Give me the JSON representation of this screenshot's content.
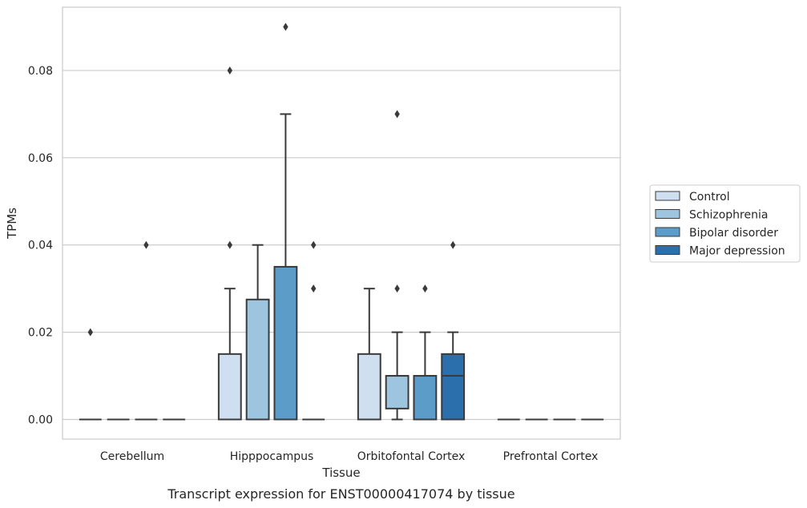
{
  "chart_data": {
    "type": "box",
    "title": "Transcript expression for ENST00000417074 by tissue",
    "xlabel": "Tissue",
    "ylabel": "TPMs",
    "categories": [
      "Cerebellum",
      "Hipppocampus",
      "Orbitofontal Cortex",
      "Prefrontal Cortex"
    ],
    "ylim": [
      -0.0045,
      0.0945
    ],
    "yticks": [
      0.0,
      0.02,
      0.04,
      0.06,
      0.08
    ],
    "ytick_labels": [
      "0.00",
      "0.02",
      "0.04",
      "0.06",
      "0.08"
    ],
    "grid": "horizontal",
    "legend_position": "right",
    "series": [
      {
        "name": "Control",
        "color": "#d0dff0",
        "boxes": [
          {
            "category": "Cerebellum",
            "whislo": 0.0,
            "q1": 0.0,
            "med": 0.0,
            "q3": 0.0,
            "whishi": 0.0,
            "fliers": [
              0.02
            ]
          },
          {
            "category": "Hipppocampus",
            "whislo": 0.0,
            "q1": 0.0,
            "med": 0.0,
            "q3": 0.015,
            "whishi": 0.03,
            "fliers": [
              0.04,
              0.08
            ]
          },
          {
            "category": "Orbitofontal Cortex",
            "whislo": 0.0,
            "q1": 0.0,
            "med": 0.0,
            "q3": 0.015,
            "whishi": 0.03,
            "fliers": []
          },
          {
            "category": "Prefrontal Cortex",
            "whislo": 0.0,
            "q1": 0.0,
            "med": 0.0,
            "q3": 0.0,
            "whishi": 0.0,
            "fliers": []
          }
        ]
      },
      {
        "name": "Schizophrenia",
        "color": "#9dc5e0",
        "boxes": [
          {
            "category": "Cerebellum",
            "whislo": 0.0,
            "q1": 0.0,
            "med": 0.0,
            "q3": 0.0,
            "whishi": 0.0,
            "fliers": []
          },
          {
            "category": "Hipppocampus",
            "whislo": 0.0,
            "q1": 0.0,
            "med": 0.0,
            "q3": 0.0275,
            "whishi": 0.04,
            "fliers": []
          },
          {
            "category": "Orbitofontal Cortex",
            "whislo": 0.0,
            "q1": 0.0025,
            "med": 0.01,
            "q3": 0.01,
            "whishi": 0.02,
            "fliers": [
              0.03,
              0.07
            ]
          },
          {
            "category": "Prefrontal Cortex",
            "whislo": 0.0,
            "q1": 0.0,
            "med": 0.0,
            "q3": 0.0,
            "whishi": 0.0,
            "fliers": []
          }
        ]
      },
      {
        "name": "Bipolar disorder",
        "color": "#5b9cc9",
        "boxes": [
          {
            "category": "Cerebellum",
            "whislo": 0.0,
            "q1": 0.0,
            "med": 0.0,
            "q3": 0.0,
            "whishi": 0.0,
            "fliers": [
              0.04
            ]
          },
          {
            "category": "Hipppocampus",
            "whislo": 0.0,
            "q1": 0.0,
            "med": 0.0,
            "q3": 0.035,
            "whishi": 0.07,
            "fliers": [
              0.09
            ]
          },
          {
            "category": "Orbitofontal Cortex",
            "whislo": 0.0,
            "q1": 0.0,
            "med": 0.01,
            "q3": 0.01,
            "whishi": 0.02,
            "fliers": [
              0.03
            ]
          },
          {
            "category": "Prefrontal Cortex",
            "whislo": 0.0,
            "q1": 0.0,
            "med": 0.0,
            "q3": 0.0,
            "whishi": 0.0,
            "fliers": []
          }
        ]
      },
      {
        "name": "Major depression",
        "color": "#2c6fad",
        "boxes": [
          {
            "category": "Cerebellum",
            "whislo": 0.0,
            "q1": 0.0,
            "med": 0.0,
            "q3": 0.0,
            "whishi": 0.0,
            "fliers": []
          },
          {
            "category": "Hipppocampus",
            "whislo": 0.0,
            "q1": 0.0,
            "med": 0.0,
            "q3": 0.0,
            "whishi": 0.0,
            "fliers": [
              0.03,
              0.04
            ]
          },
          {
            "category": "Orbitofontal Cortex",
            "whislo": 0.0,
            "q1": 0.0,
            "med": 0.01,
            "q3": 0.015,
            "whishi": 0.02,
            "fliers": [
              0.04
            ]
          },
          {
            "category": "Prefrontal Cortex",
            "whislo": 0.0,
            "q1": 0.0,
            "med": 0.0,
            "q3": 0.0,
            "whishi": 0.0,
            "fliers": []
          }
        ]
      }
    ]
  }
}
